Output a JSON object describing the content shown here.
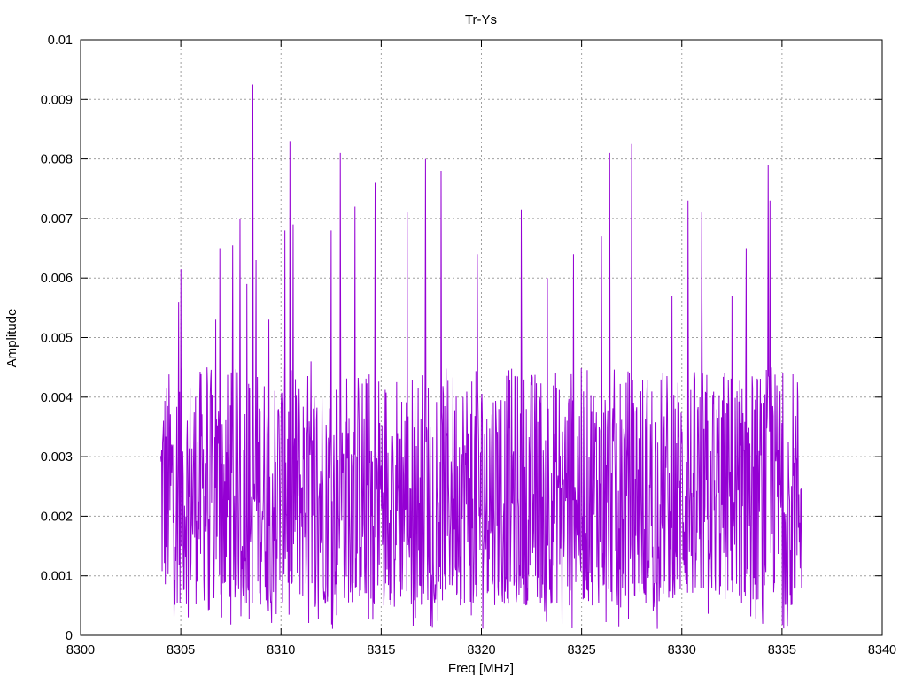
{
  "chart_data": {
    "type": "line",
    "title": "Tr-Ys",
    "xlabel": "Freq [MHz]",
    "ylabel": "Amplitude",
    "xlim": [
      8300,
      8340
    ],
    "ylim": [
      0,
      0.01
    ],
    "x_ticks": [
      "8300",
      "8305",
      "8310",
      "8315",
      "8320",
      "8325",
      "8330",
      "8335",
      "8340"
    ],
    "y_ticks": [
      "0",
      "0.001",
      "0.002",
      "0.003",
      "0.004",
      "0.005",
      "0.006",
      "0.007",
      "0.008",
      "0.009",
      "0.01"
    ],
    "grid": true,
    "legend": "none",
    "series": [
      {
        "color": "#9400d3",
        "x_start": 8304.0,
        "x_end": 8336.0,
        "baseline_range": [
          0.0005,
          0.0045
        ],
        "peaks": [
          {
            "x": 8304.35,
            "y": 0.00385
          },
          {
            "x": 8304.9,
            "y": 0.0056
          },
          {
            "x": 8305.0,
            "y": 0.00615
          },
          {
            "x": 8306.3,
            "y": 0.0045
          },
          {
            "x": 8306.75,
            "y": 0.0053
          },
          {
            "x": 8306.95,
            "y": 0.0065
          },
          {
            "x": 8307.6,
            "y": 0.00655
          },
          {
            "x": 8307.95,
            "y": 0.007
          },
          {
            "x": 8308.3,
            "y": 0.0059
          },
          {
            "x": 8308.6,
            "y": 0.00925
          },
          {
            "x": 8308.75,
            "y": 0.0063
          },
          {
            "x": 8309.4,
            "y": 0.0053
          },
          {
            "x": 8310.2,
            "y": 0.0068
          },
          {
            "x": 8310.45,
            "y": 0.0083
          },
          {
            "x": 8310.6,
            "y": 0.0069
          },
          {
            "x": 8311.5,
            "y": 0.0046
          },
          {
            "x": 8312.5,
            "y": 0.0068
          },
          {
            "x": 8312.95,
            "y": 0.0081
          },
          {
            "x": 8313.7,
            "y": 0.0072
          },
          {
            "x": 8314.7,
            "y": 0.0076
          },
          {
            "x": 8316.3,
            "y": 0.0071
          },
          {
            "x": 8317.2,
            "y": 0.008
          },
          {
            "x": 8318.0,
            "y": 0.0078
          },
          {
            "x": 8319.8,
            "y": 0.0064
          },
          {
            "x": 8322.0,
            "y": 0.00715
          },
          {
            "x": 8323.3,
            "y": 0.006
          },
          {
            "x": 8324.6,
            "y": 0.0064
          },
          {
            "x": 8326.0,
            "y": 0.0067
          },
          {
            "x": 8326.4,
            "y": 0.0081
          },
          {
            "x": 8327.5,
            "y": 0.00825
          },
          {
            "x": 8329.5,
            "y": 0.0057
          },
          {
            "x": 8330.3,
            "y": 0.0073
          },
          {
            "x": 8331.0,
            "y": 0.0071
          },
          {
            "x": 8332.5,
            "y": 0.0057
          },
          {
            "x": 8333.2,
            "y": 0.0065
          },
          {
            "x": 8334.3,
            "y": 0.0079
          },
          {
            "x": 8334.4,
            "y": 0.0073
          },
          {
            "x": 8334.9,
            "y": 0.0041
          },
          {
            "x": 8335.6,
            "y": 0.0029
          }
        ]
      }
    ]
  }
}
